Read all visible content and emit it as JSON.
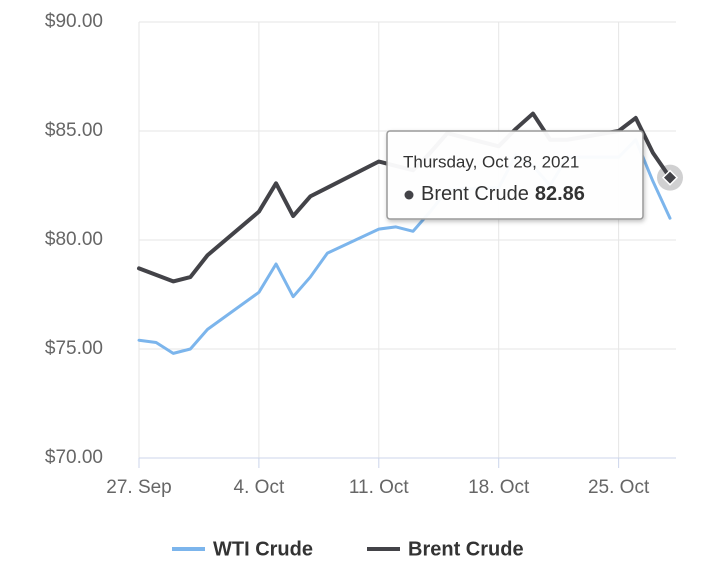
{
  "chart_data": {
    "type": "line",
    "x": [
      "2021-09-27",
      "2021-09-28",
      "2021-09-29",
      "2021-09-30",
      "2021-10-01",
      "2021-10-04",
      "2021-10-05",
      "2021-10-06",
      "2021-10-07",
      "2021-10-08",
      "2021-10-11",
      "2021-10-12",
      "2021-10-13",
      "2021-10-14",
      "2021-10-15",
      "2021-10-18",
      "2021-10-19",
      "2021-10-20",
      "2021-10-21",
      "2021-10-22",
      "2021-10-25",
      "2021-10-26",
      "2021-10-27",
      "2021-10-28"
    ],
    "series": [
      {
        "name": "WTI Crude",
        "color": "#7cb5ec",
        "values": [
          75.4,
          75.3,
          74.8,
          75.0,
          75.9,
          77.6,
          78.9,
          77.4,
          78.3,
          79.4,
          80.5,
          80.6,
          80.4,
          81.3,
          82.3,
          82.4,
          83.9,
          83.4,
          82.5,
          83.8,
          83.8,
          84.6,
          82.7,
          81.0
        ]
      },
      {
        "name": "Brent Crude",
        "color": "#434348",
        "values": [
          78.7,
          78.4,
          78.1,
          78.3,
          79.3,
          81.3,
          82.6,
          81.1,
          82.0,
          82.4,
          83.6,
          83.4,
          83.2,
          84.0,
          84.9,
          84.3,
          85.1,
          85.8,
          84.6,
          84.6,
          85.0,
          85.6,
          84.0,
          82.86
        ]
      }
    ],
    "xlim": [
      "2021-09-27",
      "2021-10-28"
    ],
    "xticks": [
      {
        "value": "2021-09-27",
        "label": "27. Sep"
      },
      {
        "value": "2021-10-04",
        "label": "4. Oct"
      },
      {
        "value": "2021-10-11",
        "label": "11. Oct"
      },
      {
        "value": "2021-10-18",
        "label": "18. Oct"
      },
      {
        "value": "2021-10-25",
        "label": "25. Oct"
      }
    ],
    "ylim": [
      70,
      90
    ],
    "yticks": [
      {
        "value": 70,
        "label": "$70.00"
      },
      {
        "value": 75,
        "label": "$75.00"
      },
      {
        "value": 80,
        "label": "$80.00"
      },
      {
        "value": 85,
        "label": "$85.00"
      },
      {
        "value": 90,
        "label": "$90.00"
      }
    ],
    "grid": true,
    "tooltip_title": "Thursday, Oct 28, 2021"
  }
}
